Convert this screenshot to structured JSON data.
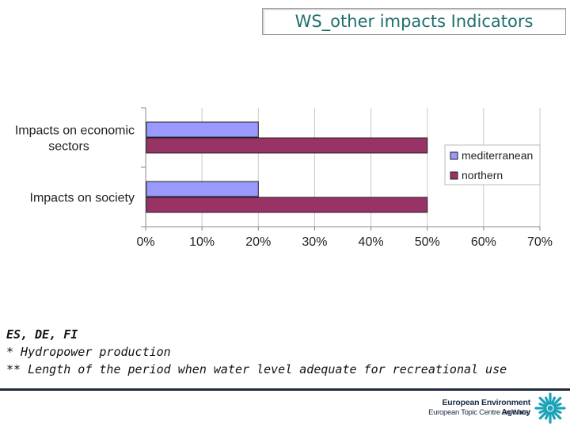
{
  "slide": {
    "title": "WS_other impacts Indicators"
  },
  "chart_data": {
    "type": "bar",
    "orientation": "horizontal",
    "categories": [
      "Impacts on economic sectors",
      "Impacts on society"
    ],
    "category_lines": [
      [
        "Impacts on economic",
        "sectors"
      ],
      [
        "Impacts on society"
      ]
    ],
    "series": [
      {
        "name": "mediterranean",
        "color": "#9999ff",
        "values": [
          0.2,
          0.2
        ]
      },
      {
        "name": "northern",
        "color": "#993366",
        "values": [
          0.5,
          0.5
        ]
      }
    ],
    "xlim": [
      0,
      0.7
    ],
    "xticks": [
      "0%",
      "10%",
      "20%",
      "30%",
      "40%",
      "50%",
      "60%",
      "70%"
    ],
    "grid": "vertical",
    "legend": "right"
  },
  "notes": {
    "line1": "ES, DE, FI",
    "line2": "* Hydropower production",
    "line3": "** Length of the period when water level adequate for recreational use"
  },
  "footer": {
    "agency": "European Environment Agency",
    "etc": "European Topic Centre on Water",
    "logo_icon": "eea-sunburst-icon",
    "logo_color": "#1aa3b8"
  }
}
